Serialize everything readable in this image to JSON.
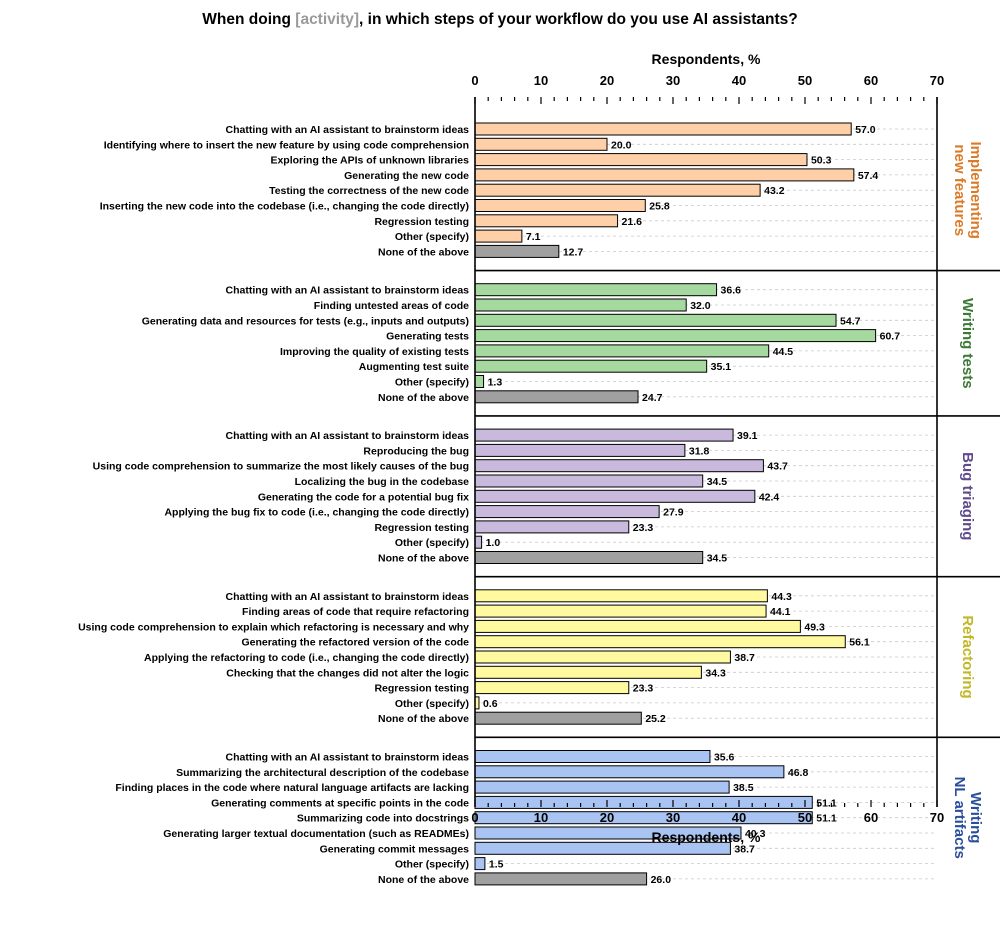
{
  "chart_data": {
    "type": "bar",
    "orientation": "horizontal",
    "title_parts": [
      {
        "text": "When doing ",
        "highlight": false
      },
      {
        "text": "[activity]",
        "highlight": true
      },
      {
        "text": ", in which steps of your workflow do you use AI assistants?",
        "highlight": false
      }
    ],
    "title_highlight_color": "#9a9a9a",
    "xlabel": "Respondents, %",
    "xlim": [
      0,
      70
    ],
    "x_ticks": [
      0,
      10,
      20,
      30,
      40,
      50,
      60,
      70
    ],
    "grid": "dashed horizontal",
    "none_color": "#a0a0a0",
    "groups": [
      {
        "name_lines": [
          "Implementing",
          "new features"
        ],
        "color": "#ffd0a8",
        "label_color": "#d97b29",
        "categories": [
          "Chatting with an AI assistant to brainstorm ideas",
          "Identifying where to insert the new feature by using code comprehension",
          "Exploring the APIs of unknown libraries",
          "Generating the new code",
          "Testing the correctness of the new code",
          "Inserting the new code into the codebase (i.e., changing the code directly)",
          "Regression testing",
          "Other (specify)",
          "None of the above"
        ],
        "values": [
          57.0,
          20.0,
          50.3,
          57.4,
          43.2,
          25.8,
          21.6,
          7.1,
          12.7
        ],
        "value_labels": [
          "57.0",
          "20.0",
          "50.3",
          "57.4",
          "43.2",
          "25.8",
          "21.6",
          "7.1",
          "12.7"
        ]
      },
      {
        "name_lines": [
          "Writing tests"
        ],
        "color": "#a6d9a0",
        "label_color": "#3c7a35",
        "categories": [
          "Chatting with an AI assistant to brainstorm ideas",
          "Finding untested areas of code",
          "Generating data and resources for tests (e.g., inputs and outputs)",
          "Generating tests",
          "Improving the quality of existing tests",
          "Augmenting test suite",
          "Other (specify)",
          "None of the above"
        ],
        "values": [
          36.6,
          32.0,
          54.7,
          60.7,
          44.5,
          35.1,
          1.3,
          24.7
        ],
        "value_labels": [
          "36.6",
          "32.0",
          "54.7",
          "60.7",
          "44.5",
          "35.1",
          "1.3",
          "24.7"
        ]
      },
      {
        "name_lines": [
          "Bug triaging"
        ],
        "color": "#c9b9dd",
        "label_color": "#5f4b8b",
        "categories": [
          "Chatting with an AI assistant to brainstorm ideas",
          "Reproducing the bug",
          "Using code comprehension to summarize the most likely causes of the bug",
          "Localizing the bug in the codebase",
          "Generating the code for a potential bug fix",
          "Applying the bug fix to code (i.e., changing the code directly)",
          "Regression testing",
          "Other (specify)",
          "None of the above"
        ],
        "values": [
          39.1,
          31.8,
          43.7,
          34.5,
          42.4,
          27.9,
          23.3,
          1.0,
          34.5
        ],
        "value_labels": [
          "39.1",
          "31.8",
          "43.7",
          "34.5",
          "42.4",
          "27.9",
          "23.3",
          "1.0",
          "34.5"
        ]
      },
      {
        "name_lines": [
          "Refactoring"
        ],
        "color": "#fffaa0",
        "label_color": "#c2b728",
        "categories": [
          "Chatting with an AI assistant to brainstorm ideas",
          "Finding areas of code that require refactoring",
          "Using code comprehension to explain which refactoring is necessary and why",
          "Generating the refactored version of the code",
          "Applying the refactoring to code (i.e., changing the code directly)",
          "Checking that the changes did not alter the logic",
          "Regression testing",
          "Other (specify)",
          "None of the above"
        ],
        "values": [
          44.3,
          44.1,
          49.3,
          56.1,
          38.7,
          34.3,
          23.3,
          0.6,
          25.2
        ],
        "value_labels": [
          "44.3",
          "44.1",
          "49.3",
          "56.1",
          "38.7",
          "34.3",
          "23.3",
          "0.6",
          "25.2"
        ]
      },
      {
        "name_lines": [
          "Writing",
          "NL artifacts"
        ],
        "color": "#a9c4f2",
        "label_color": "#2a4f9a",
        "categories": [
          "Chatting with an AI assistant to brainstorm ideas",
          "Summarizing the architectural description of the codebase",
          "Finding places in the code where natural language artifacts are lacking",
          "Generating comments at specific points in the code",
          "Summarizing code into docstrings",
          "Generating larger textual documentation (such as READMEs)",
          "Generating commit messages",
          "Other (specify)",
          "None of the above"
        ],
        "values": [
          35.6,
          46.8,
          38.5,
          51.1,
          51.1,
          40.3,
          38.7,
          1.5,
          26.0
        ],
        "value_labels": [
          "35.6",
          "46.8",
          "38.5",
          "51.1",
          "51.1",
          "40.3",
          "38.7",
          "1.5",
          "26.0"
        ]
      }
    ]
  }
}
